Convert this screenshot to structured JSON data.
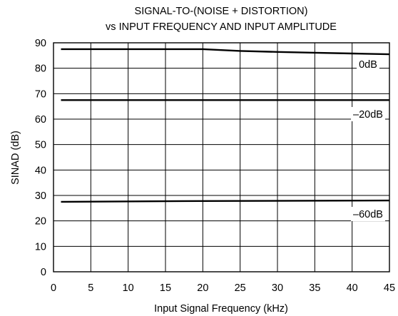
{
  "chart_data": {
    "type": "line",
    "title": "SIGNAL-TO-(NOISE + DISTORTION)",
    "subtitle": "vs INPUT FREQUENCY AND INPUT AMPLITUDE",
    "xlabel": "Input Signal Frequency (kHz)",
    "ylabel": "SINAD (dB)",
    "xlim": [
      0,
      45
    ],
    "ylim": [
      0,
      90
    ],
    "xticks": [
      0,
      5,
      10,
      15,
      20,
      25,
      30,
      35,
      40,
      45
    ],
    "yticks": [
      0,
      10,
      20,
      30,
      40,
      50,
      60,
      70,
      80,
      90
    ],
    "grid": true,
    "series": [
      {
        "name": "0dB",
        "x": [
          1,
          20,
          25,
          30,
          35,
          40,
          45
        ],
        "y": [
          87.5,
          87.5,
          86.8,
          86.4,
          86.1,
          85.8,
          85.5
        ]
      },
      {
        "name": "–20dB",
        "x": [
          1,
          45
        ],
        "y": [
          67.5,
          67.5
        ]
      },
      {
        "name": "–60dB",
        "x": [
          1,
          20,
          45
        ],
        "y": [
          27.5,
          27.8,
          28
        ]
      }
    ]
  }
}
